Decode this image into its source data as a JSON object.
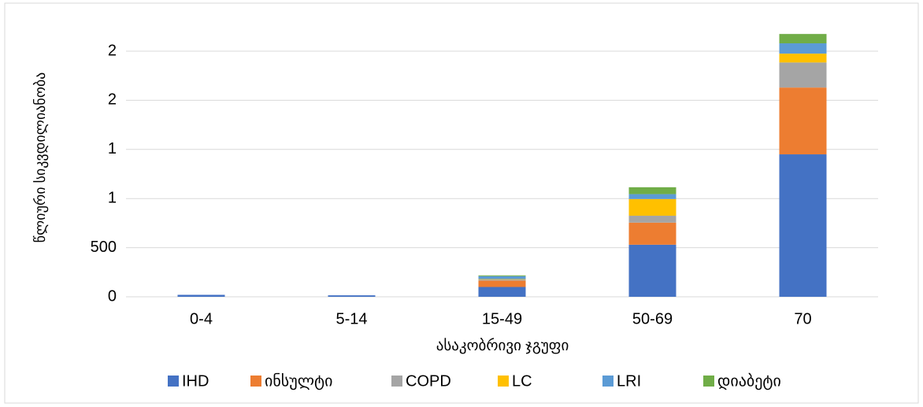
{
  "chart_data": {
    "type": "stacked_bar",
    "y_label": "წლიური სიკვდილიანობა",
    "x_label": "ასაკობრივი ჯგუფი",
    "categories": [
      "0-4",
      "5-14",
      "15-49",
      "50-69",
      "70"
    ],
    "series": [
      {
        "name": "IHD",
        "color": "#4472c4",
        "values": [
          20,
          15,
          100,
          530,
          1450
        ]
      },
      {
        "name": "ინსულტი",
        "color": "#ed7d31",
        "values": [
          0,
          0,
          65,
          225,
          680
        ]
      },
      {
        "name": "COPD",
        "color": "#a5a5a5",
        "values": [
          0,
          0,
          10,
          70,
          255
        ]
      },
      {
        "name": "LC",
        "color": "#ffc000",
        "values": [
          0,
          0,
          5,
          170,
          90
        ]
      },
      {
        "name": "LRI",
        "color": "#5b9bd5",
        "values": [
          0,
          0,
          30,
          50,
          105
        ]
      },
      {
        "name": "დიაბეტი",
        "color": "#70ad47",
        "values": [
          0,
          0,
          8,
          70,
          95
        ]
      }
    ],
    "ylim": [
      0,
      2700
    ],
    "yticks": [
      0,
      500,
      {
        "value": 1000,
        "label": "1"
      },
      {
        "value": 1500,
        "label": "1"
      },
      {
        "value": 2000,
        "label": "2"
      },
      {
        "value": 2500,
        "label": "2"
      }
    ],
    "grid": true,
    "legend": "bottom"
  }
}
